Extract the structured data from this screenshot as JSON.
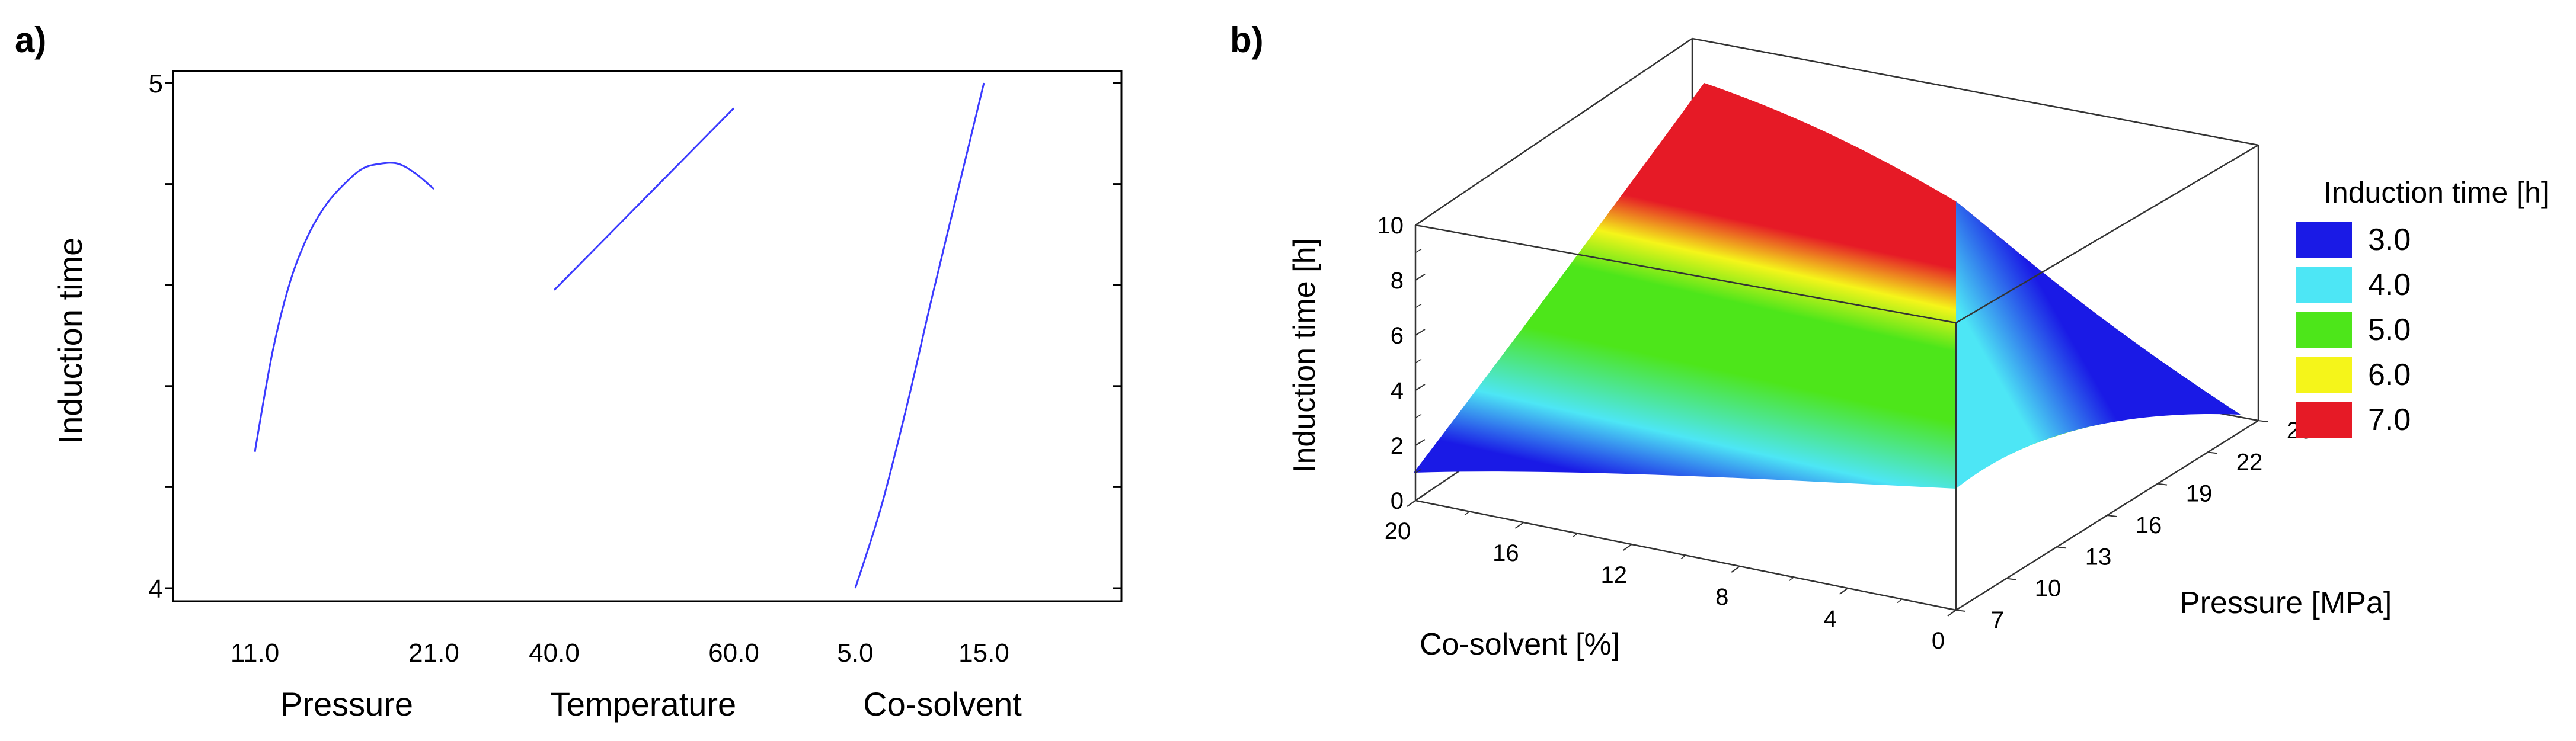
{
  "panel_a_label": "a)",
  "panel_b_label": "b)",
  "chart_data": [
    {
      "type": "line",
      "panel": "a)",
      "ylabel": "Induction time",
      "ylim": [
        4,
        5
      ],
      "yticks": [
        "5",
        "4"
      ],
      "groups": [
        {
          "name": "Pressure",
          "tick_labels": [
            "11.0",
            "21.0"
          ],
          "x": [
            11,
            12,
            13,
            14,
            15,
            16,
            17,
            18,
            19,
            20,
            21
          ],
          "y": [
            4.27,
            4.47,
            4.61,
            4.7,
            4.76,
            4.8,
            4.83,
            4.84,
            4.84,
            4.82,
            4.79
          ]
        },
        {
          "name": "Temperature",
          "tick_labels": [
            "40.0",
            "60.0"
          ],
          "x": [
            40,
            45,
            50,
            55,
            60
          ],
          "y": [
            4.59,
            4.68,
            4.77,
            4.86,
            4.95
          ]
        },
        {
          "name": "Co-solvent",
          "tick_labels": [
            "5.0",
            "15.0"
          ],
          "x": [
            5,
            7,
            9,
            11,
            13,
            15
          ],
          "y": [
            4.0,
            4.16,
            4.36,
            4.58,
            4.79,
            5.0
          ]
        }
      ]
    },
    {
      "type": "surface",
      "panel": "b)",
      "zlabel": "Induction time [h]",
      "xlabel": "Co-solvent [%]",
      "ylabel": "Pressure [MPa]",
      "x_ticks": [
        "20",
        "16",
        "12",
        "8",
        "4",
        "0"
      ],
      "y_ticks": [
        "7",
        "10",
        "13",
        "16",
        "19",
        "22",
        "25"
      ],
      "z_ticks": [
        "0",
        "2",
        "4",
        "6",
        "8",
        "10"
      ],
      "zlim": [
        0,
        10
      ],
      "corners": [
        {
          "co_solvent": 20,
          "pressure": 7,
          "induction_time": 1.5
        },
        {
          "co_solvent": 0,
          "pressure": 7,
          "induction_time": 0.5
        },
        {
          "co_solvent": 20,
          "pressure": 25,
          "induction_time": 10.5
        },
        {
          "co_solvent": 0,
          "pressure": 25,
          "induction_time": 3.0
        }
      ],
      "legend": {
        "title": "Induction time [h]",
        "position": "right",
        "entries": [
          {
            "label": "3.0",
            "color": "#1a1ae6"
          },
          {
            "label": "4.0",
            "color": "#4de6f5"
          },
          {
            "label": "5.0",
            "color": "#4de61a"
          },
          {
            "label": "6.0",
            "color": "#f5f51a"
          },
          {
            "label": "7.0",
            "color": "#e61a26"
          }
        ]
      }
    }
  ]
}
